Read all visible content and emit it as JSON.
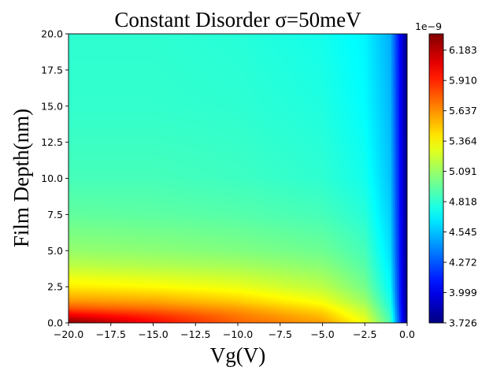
{
  "chart_data": {
    "type": "heatmap",
    "title": "Constant Disorder σ=50meV",
    "xlabel": "Vg(V)",
    "ylabel": "Film Depth(nm)",
    "xlim": [
      -20.0,
      0.0
    ],
    "ylim": [
      0.0,
      20.0
    ],
    "x_ticks": [
      "−20.0",
      "−17.5",
      "−15.0",
      "−12.5",
      "−10.0",
      "−7.5",
      "−5.0",
      "−2.5",
      "0.0"
    ],
    "y_ticks": [
      "0.0",
      "2.5",
      "5.0",
      "7.5",
      "10.0",
      "12.5",
      "15.0",
      "17.5",
      "20.0"
    ],
    "colormap": "jet",
    "colorbar": {
      "multiplier_label": "1e−9",
      "min": 3.726,
      "max": 6.33,
      "ticks": [
        "3.726",
        "3.999",
        "4.272",
        "4.545",
        "4.818",
        "5.091",
        "5.364",
        "5.637",
        "5.910",
        "6.183"
      ],
      "tick_values": [
        3.726,
        3.999,
        4.272,
        4.545,
        4.818,
        5.091,
        5.364,
        5.637,
        5.91,
        6.183
      ]
    },
    "field_samples": {
      "x": [
        -20,
        -15,
        -10,
        -5,
        -2.5,
        -1,
        -0.5,
        0
      ],
      "y": [
        0,
        0.5,
        1,
        1.5,
        2.5,
        4,
        5,
        7.5,
        10,
        15,
        20
      ],
      "z": [
        [
          6.33,
          6.0,
          5.75,
          5.6,
          5.32,
          4.9,
          4.3,
          3.73
        ],
        [
          6.05,
          5.9,
          5.7,
          5.52,
          5.25,
          4.85,
          4.28,
          3.73
        ],
        [
          5.8,
          5.72,
          5.6,
          5.42,
          5.18,
          4.8,
          4.25,
          3.73
        ],
        [
          5.62,
          5.58,
          5.48,
          5.32,
          5.1,
          4.76,
          4.22,
          3.73
        ],
        [
          5.4,
          5.36,
          5.3,
          5.18,
          5.0,
          4.7,
          4.2,
          3.73
        ],
        [
          5.18,
          5.15,
          5.12,
          5.05,
          4.92,
          4.65,
          4.18,
          3.73
        ],
        [
          5.08,
          5.06,
          5.03,
          4.98,
          4.88,
          4.62,
          4.17,
          3.73
        ],
        [
          4.95,
          4.94,
          4.92,
          4.88,
          4.8,
          4.58,
          4.15,
          3.73
        ],
        [
          4.88,
          4.88,
          4.86,
          4.82,
          4.75,
          4.55,
          4.14,
          3.73
        ],
        [
          4.83,
          4.83,
          4.82,
          4.78,
          4.7,
          4.52,
          4.12,
          3.73
        ],
        [
          4.82,
          4.82,
          4.8,
          4.75,
          4.68,
          4.5,
          4.11,
          3.73
        ]
      ]
    }
  },
  "colors": {
    "background": "#ffffff",
    "axis": "#000000"
  }
}
